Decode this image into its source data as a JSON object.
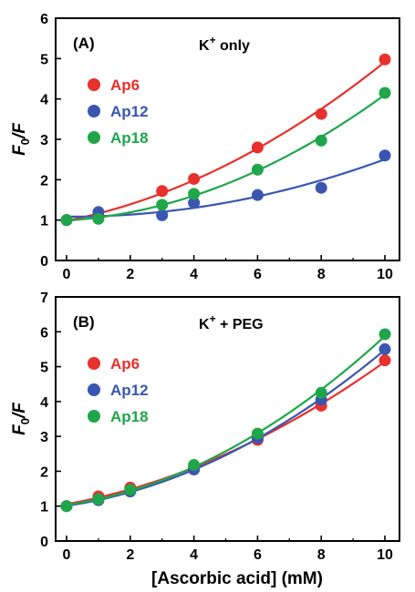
{
  "colors": {
    "Ap6": "#e8302c",
    "Ap12": "#3a56b0",
    "Ap18": "#1fa64a"
  },
  "shared_xlabel": "[Ascorbic acid] (mM)",
  "chart_data": [
    {
      "type": "scatter",
      "panel_label": "(A)",
      "condition": {
        "base": "K",
        "sup": "+",
        "rest": " only"
      },
      "ylabel": {
        "main": "F",
        "sub": "0",
        "rest": "/F"
      },
      "xlim": [
        0,
        10
      ],
      "ylim": [
        0,
        6
      ],
      "x_ticks": [
        "0",
        "2",
        "4",
        "6",
        "8",
        "10"
      ],
      "y_ticks": [
        "0",
        "1",
        "2",
        "3",
        "4",
        "5",
        "6"
      ],
      "x": [
        0,
        1,
        3,
        4,
        6,
        8,
        10
      ],
      "series": [
        {
          "name": "Ap6",
          "color": "#e8302c",
          "values": [
            1.0,
            1.1,
            1.72,
            2.02,
            2.8,
            3.63,
            4.98
          ]
        },
        {
          "name": "Ap12",
          "color": "#3a56b0",
          "values": [
            1.0,
            1.2,
            1.12,
            1.43,
            1.62,
            1.8,
            2.6
          ]
        },
        {
          "name": "Ap18",
          "color": "#1fa64a",
          "values": [
            1.0,
            1.03,
            1.38,
            1.65,
            2.25,
            2.97,
            4.15
          ]
        }
      ],
      "legend": [
        "Ap6",
        "Ap12",
        "Ap18"
      ],
      "legend_position": "upper-left",
      "grid": false,
      "fit_curves": true
    },
    {
      "type": "scatter",
      "panel_label": "(B)",
      "condition": {
        "base": "K",
        "sup": "+",
        "rest": " + PEG"
      },
      "ylabel": {
        "main": "F",
        "sub": "0",
        "rest": "/F"
      },
      "xlabel": "[Ascorbic acid] (mM)",
      "xlim": [
        0,
        10
      ],
      "ylim": [
        0,
        7
      ],
      "x_ticks": [
        "0",
        "2",
        "4",
        "6",
        "8",
        "10"
      ],
      "y_ticks": [
        "0",
        "1",
        "2",
        "3",
        "4",
        "5",
        "6",
        "7"
      ],
      "x": [
        0,
        1,
        2,
        4,
        6,
        8,
        10
      ],
      "series": [
        {
          "name": "Ap6",
          "color": "#e8302c",
          "values": [
            1.0,
            1.28,
            1.53,
            2.12,
            2.9,
            3.88,
            5.18
          ]
        },
        {
          "name": "Ap12",
          "color": "#3a56b0",
          "values": [
            1.0,
            1.17,
            1.42,
            2.05,
            2.95,
            4.05,
            5.5
          ]
        },
        {
          "name": "Ap18",
          "color": "#1fa64a",
          "values": [
            1.0,
            1.2,
            1.47,
            2.18,
            3.08,
            4.25,
            5.93
          ]
        }
      ],
      "legend": [
        "Ap6",
        "Ap12",
        "Ap18"
      ],
      "legend_position": "upper-left",
      "grid": false,
      "fit_curves": true
    }
  ]
}
